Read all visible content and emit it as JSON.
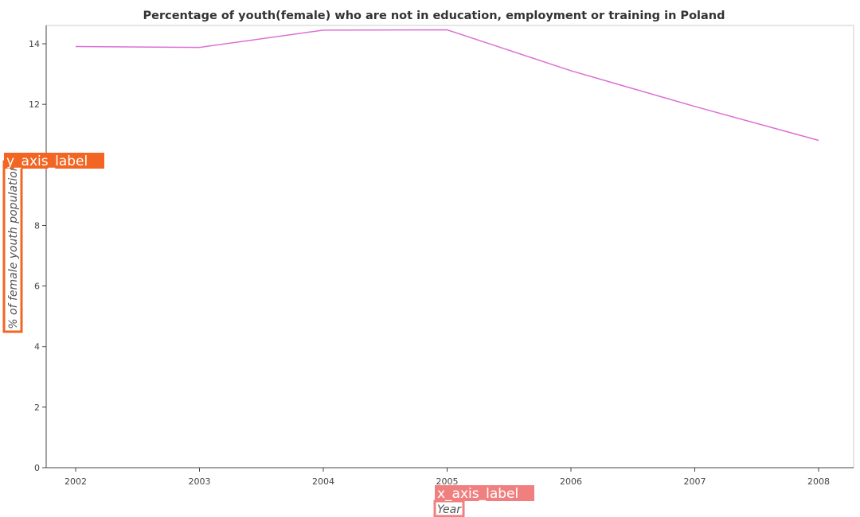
{
  "chart_data": {
    "type": "line",
    "title": "Percentage of youth(female) who are not in education, employment or training in Poland",
    "xlabel": "Year",
    "ylabel": "% of female youth population",
    "x_axis_badge": "x_axis_label",
    "y_axis_badge": "y_axis_label",
    "categories": [
      "2002",
      "2003",
      "2004",
      "2005",
      "2006",
      "2007",
      "2008"
    ],
    "series": [
      {
        "values": [
          13.91,
          13.88,
          14.45,
          14.46,
          13.11,
          11.93,
          10.81
        ]
      }
    ],
    "ylim": [
      0,
      14.5
    ],
    "yticks": [
      0,
      2,
      4,
      6,
      8,
      10,
      12,
      14
    ],
    "grid": false,
    "line_color": "#da70d6",
    "x_badge_color": "#f08080",
    "y_badge_color": "#f26522"
  }
}
